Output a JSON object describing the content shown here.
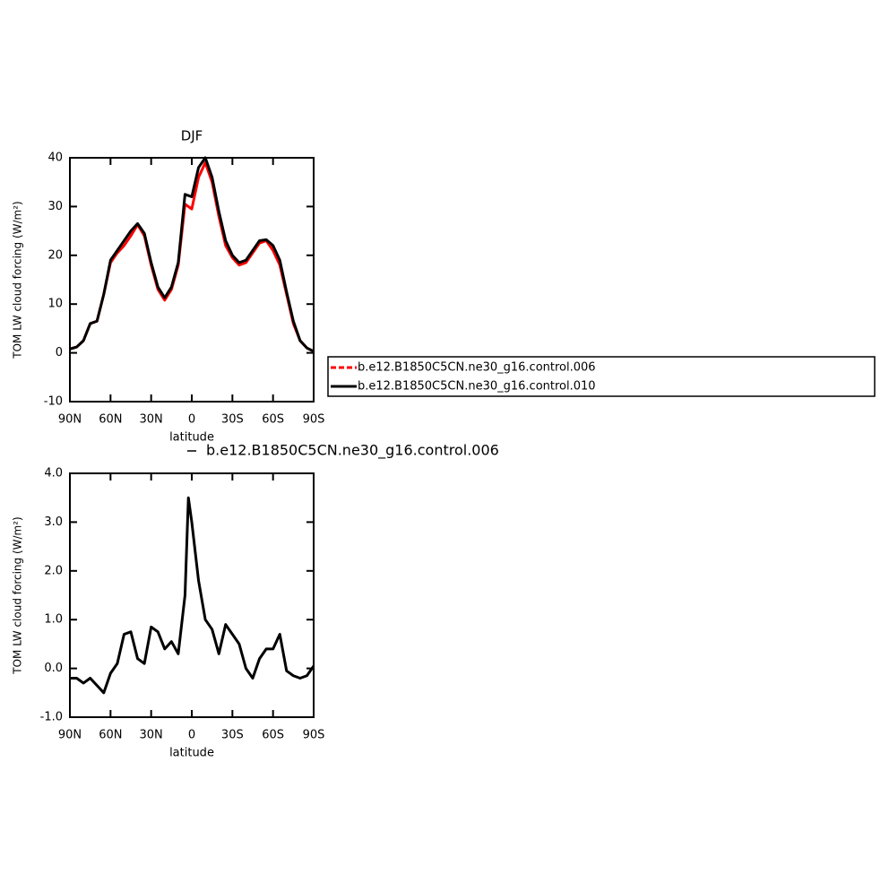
{
  "chart_data": [
    {
      "type": "line",
      "title": "DJF",
      "xlabel": "latitude",
      "ylabel": "TOM LW cloud forcing (W/m²)",
      "x": [
        90,
        85,
        80,
        75,
        70,
        65,
        60,
        55,
        50,
        45,
        40,
        35,
        30,
        25,
        20,
        15,
        10,
        5,
        0,
        -5,
        -10,
        -15,
        -20,
        -25,
        -30,
        -35,
        -40,
        -45,
        -50,
        -55,
        -60,
        -65,
        -70,
        -75,
        -80,
        -85,
        -90
      ],
      "series": [
        {
          "name": "b.e12.B1850C5CN.ne30_g16.control.006",
          "color": "#ff0000",
          "values": [
            0.8,
            1.2,
            2.5,
            6,
            6.5,
            12,
            18.5,
            20.5,
            22,
            24,
            26.3,
            24,
            18,
            13,
            10.8,
            13,
            18,
            30.5,
            29.5,
            36,
            39,
            35,
            28,
            22,
            19.5,
            18,
            18.5,
            20.5,
            22.5,
            23,
            21,
            18,
            12,
            6,
            2.5,
            1.0,
            0.3
          ]
        },
        {
          "name": "b.e12.B1850C5CN.ne30_g16.control.010",
          "color": "#000000",
          "values": [
            0.8,
            1.2,
            2.5,
            6,
            6.5,
            12,
            19,
            21,
            23,
            25,
            26.5,
            24.5,
            18.5,
            13.5,
            11.3,
            13.5,
            18.5,
            32.5,
            32,
            38,
            40,
            36,
            29,
            23,
            20,
            18.5,
            19,
            21,
            23,
            23.2,
            22,
            19,
            12.5,
            6.5,
            2.5,
            1.0,
            0.3
          ]
        }
      ],
      "xlim": [
        90,
        -90
      ],
      "xticks": [
        {
          "value": 90,
          "label": "90N"
        },
        {
          "value": 60,
          "label": "60N"
        },
        {
          "value": 30,
          "label": "30N"
        },
        0,
        {
          "value": -30,
          "label": "30S"
        },
        {
          "value": -60,
          "label": "60S"
        },
        {
          "value": -90,
          "label": "90S"
        }
      ],
      "ylim": [
        -10,
        40
      ],
      "yticks": [
        -10,
        0,
        10,
        20,
        30,
        40
      ]
    },
    {
      "type": "line",
      "xlabel": "latitude",
      "ylabel": "TOM LW cloud forcing (W/m²)",
      "x": [
        90,
        85,
        80,
        75,
        70,
        65,
        60,
        55,
        50,
        45,
        40,
        35,
        30,
        25,
        20,
        15,
        10,
        5,
        2.5,
        0,
        -5,
        -10,
        -15,
        -20,
        -25,
        -30,
        -35,
        -40,
        -45,
        -50,
        -55,
        -60,
        -65,
        -70,
        -75,
        -80,
        -85,
        -90
      ],
      "series": [
        {
          "name": "b.e12.B1850C5CN.ne30_g16.control.006",
          "color": "#000000",
          "values": [
            -0.2,
            -0.2,
            -0.3,
            -0.2,
            -0.35,
            -0.5,
            -0.1,
            0.1,
            0.7,
            0.75,
            0.2,
            0.1,
            0.85,
            0.75,
            0.4,
            0.55,
            0.3,
            1.5,
            3.5,
            3.0,
            1.8,
            1.0,
            0.8,
            0.3,
            0.9,
            0.7,
            0.5,
            0.0,
            -0.2,
            0.2,
            0.4,
            0.4,
            0.7,
            -0.05,
            -0.15,
            -0.2,
            -0.15,
            0.05
          ]
        }
      ],
      "xlim": [
        90,
        -90
      ],
      "xticks": [
        {
          "value": 90,
          "label": "90N"
        },
        {
          "value": 60,
          "label": "60N"
        },
        {
          "value": 30,
          "label": "30N"
        },
        0,
        {
          "value": -30,
          "label": "30S"
        },
        {
          "value": -60,
          "label": "60S"
        },
        {
          "value": -90,
          "label": "90S"
        }
      ],
      "ylim": [
        -1,
        4
      ],
      "yticks": [
        {
          "value": -1,
          "label": "-1.0"
        },
        {
          "value": 0,
          "label": "0.0"
        },
        {
          "value": 1,
          "label": "1.0"
        },
        {
          "value": 2,
          "label": "2.0"
        },
        {
          "value": 3,
          "label": "3.0"
        },
        {
          "value": 4,
          "label": "4.0"
        }
      ]
    }
  ]
}
